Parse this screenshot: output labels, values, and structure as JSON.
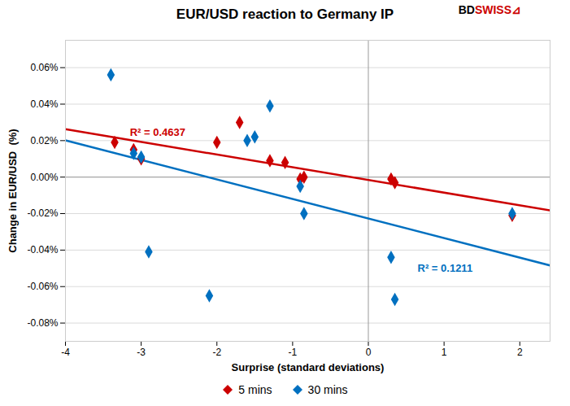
{
  "chart_data": {
    "type": "scatter",
    "title": "EUR/USD reaction to Germany IP",
    "xlabel": "Surprise (standard deviations)",
    "ylabel": "Change in EUR/USD  (%)",
    "background": "#FFFFFF",
    "xlim": [
      -4,
      2.4
    ],
    "xticks": [
      -4,
      -3,
      -2,
      -1,
      0,
      1,
      2
    ],
    "ylim": [
      -0.0009,
      0.00075
    ],
    "yticks": [
      {
        "value": -0.0008,
        "label": "-0.08%"
      },
      {
        "value": -0.0006,
        "label": "-0.06%"
      },
      {
        "value": -0.0004,
        "label": "-0.04%"
      },
      {
        "value": -0.0002,
        "label": "-0.02%"
      },
      {
        "value": 0.0,
        "label": "0.00%"
      },
      {
        "value": 0.0002,
        "label": "0.02%"
      },
      {
        "value": 0.0004,
        "label": "0.04%"
      },
      {
        "value": 0.0006,
        "label": "0.06%"
      }
    ],
    "grid": "y",
    "legend": "bottom",
    "series": [
      {
        "name": "5 mins",
        "type": "scatter",
        "marker": "diamond",
        "color": "#CC0000",
        "x": [
          -3.35,
          -3.1,
          -3.0,
          -2.0,
          -1.7,
          -1.3,
          -1.1,
          -0.9,
          -0.85,
          0.3,
          0.35,
          1.9
        ],
        "values": [
          0.00019,
          0.00015,
          0.0001,
          0.00019,
          0.0003,
          9e-05,
          8e-05,
          -1e-05,
          0.0,
          -1e-05,
          -3e-05,
          -0.00021
        ]
      },
      {
        "name": "30 mins",
        "type": "scatter",
        "marker": "diamond",
        "color": "#0070C0",
        "x": [
          -3.4,
          -3.1,
          -3.0,
          -2.9,
          -2.1,
          -1.6,
          -1.5,
          -1.3,
          -0.9,
          -0.85,
          0.3,
          0.35,
          1.9
        ],
        "values": [
          0.00056,
          0.00013,
          0.00011,
          -0.00041,
          -0.00065,
          0.0002,
          0.00022,
          0.00039,
          -5e-05,
          -0.0002,
          -0.00044,
          -0.00067,
          -0.0002
        ]
      },
      {
        "type": "line",
        "color": "#CC0000",
        "x": [
          -4,
          2.4
        ],
        "values": [
          0.0002627394,
          -0.0001824452
        ]
      },
      {
        "type": "line",
        "color": "#0070C0",
        "x": [
          -4,
          2.4
        ],
        "values": [
          0.0002018409,
          -0.0004842109
        ]
      }
    ],
    "rules": [
      {
        "axis": "x",
        "value": 0
      },
      {
        "axis": "y",
        "value": 0
      }
    ],
    "annotations": [
      {
        "text": "R² = 0.4637",
        "x": -3.15,
        "y": 0.000225,
        "color": "#CC0000"
      },
      {
        "text": "R² = 0.1211",
        "x": 0.65,
        "y": -0.00052,
        "color": "#0070C0"
      }
    ],
    "logo": [
      {
        "text": "BD",
        "color": "#000000"
      },
      {
        "text": "SWISS",
        "color": "#CC0000"
      },
      {
        "text": "⊿",
        "color": "#CC0000"
      }
    ]
  }
}
